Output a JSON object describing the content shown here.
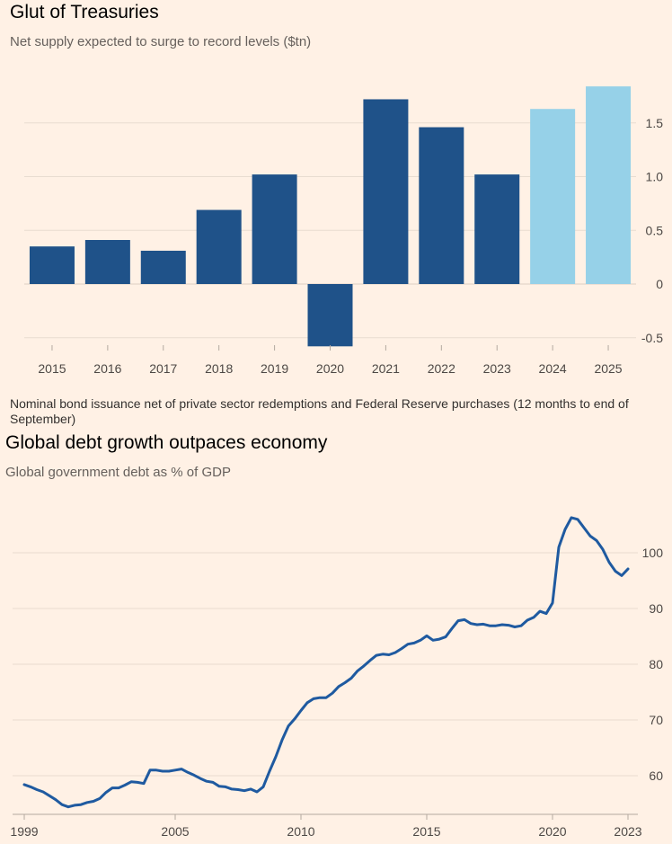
{
  "colors": {
    "background": "#fff1e5",
    "bar_actual": "#1f5289",
    "bar_forecast": "#96d1e8",
    "line": "#1f5aa0",
    "grid": "#e8dcd0"
  },
  "chart_data": [
    {
      "type": "bar",
      "title": "Glut of Treasuries",
      "subtitle": "Net supply expected to surge to record levels ($tn)",
      "note": "Nominal bond issuance net of private sector redemptions and Federal Reserve purchases (12 months to end of September)",
      "categories": [
        "2015",
        "2016",
        "2017",
        "2018",
        "2019",
        "2020",
        "2021",
        "2022",
        "2023",
        "2024",
        "2025"
      ],
      "values": [
        0.35,
        0.41,
        0.31,
        0.69,
        1.02,
        -0.58,
        1.72,
        1.46,
        1.02,
        1.63,
        1.84
      ],
      "forecast": [
        false,
        false,
        false,
        false,
        false,
        false,
        false,
        false,
        false,
        true,
        true
      ],
      "ylim": [
        -0.58,
        1.85
      ],
      "yticks": [
        -0.5,
        0,
        0.5,
        1.0,
        1.5
      ],
      "ytick_labels": [
        "-0.5",
        "0",
        "0.5",
        "1.0",
        "1.5"
      ],
      "y_axis_side": "right",
      "grid": true
    },
    {
      "type": "line",
      "title": "Global debt growth outpaces economy",
      "subtitle": "Global government debt as % of GDP",
      "xlim": [
        1999,
        2023.1
      ],
      "ylim": [
        54,
        108
      ],
      "xticks": [
        1999,
        2005,
        2010,
        2015,
        2020,
        2023
      ],
      "xtick_labels": [
        "1999",
        "2005",
        "2010",
        "2015",
        "2020",
        "2023"
      ],
      "yticks": [
        60,
        70,
        80,
        90,
        100
      ],
      "ytick_labels": [
        "60",
        "70",
        "80",
        "90",
        "100"
      ],
      "y_axis_side": "right",
      "grid": true,
      "series": [
        {
          "x": [
            1999.0,
            1999.25,
            1999.5,
            1999.75,
            2000.0,
            2000.25,
            2000.5,
            2000.75,
            2001.0,
            2001.25,
            2001.5,
            2001.75,
            2002.0,
            2002.25,
            2002.5,
            2002.75,
            2003.0,
            2003.25,
            2003.5,
            2003.75,
            2004.0,
            2004.25,
            2004.5,
            2004.75,
            2005.0,
            2005.25,
            2005.5,
            2005.75,
            2006.0,
            2006.25,
            2006.5,
            2006.75,
            2007.0,
            2007.25,
            2007.5,
            2007.75,
            2008.0,
            2008.25,
            2008.5,
            2008.75,
            2009.0,
            2009.25,
            2009.5,
            2009.75,
            2010.0,
            2010.25,
            2010.5,
            2010.75,
            2011.0,
            2011.25,
            2011.5,
            2011.75,
            2012.0,
            2012.25,
            2012.5,
            2012.75,
            2013.0,
            2013.25,
            2013.5,
            2013.75,
            2014.0,
            2014.25,
            2014.5,
            2014.75,
            2015.0,
            2015.25,
            2015.5,
            2015.75,
            2016.0,
            2016.25,
            2016.5,
            2016.75,
            2017.0,
            2017.25,
            2017.5,
            2017.75,
            2018.0,
            2018.25,
            2018.5,
            2018.75,
            2019.0,
            2019.25,
            2019.5,
            2019.75,
            2020.0,
            2020.25,
            2020.5,
            2020.75,
            2021.0,
            2021.25,
            2021.5,
            2021.75,
            2022.0,
            2022.25,
            2022.5,
            2022.75,
            2023.0
          ],
          "values": [
            58.4,
            58.0,
            57.5,
            57.1,
            56.4,
            55.7,
            54.8,
            54.4,
            54.7,
            54.8,
            55.2,
            55.4,
            55.9,
            57.0,
            57.8,
            57.8,
            58.3,
            58.9,
            58.8,
            58.6,
            61.0,
            61.0,
            60.8,
            60.8,
            61.0,
            61.2,
            60.6,
            60.1,
            59.5,
            59.0,
            58.8,
            58.1,
            58.0,
            57.6,
            57.5,
            57.3,
            57.6,
            57.1,
            58.0,
            60.8,
            63.4,
            66.4,
            68.9,
            70.2,
            71.7,
            73.1,
            73.8,
            74.0,
            74.0,
            74.8,
            76.0,
            76.7,
            77.5,
            78.8,
            79.7,
            80.7,
            81.6,
            81.8,
            81.7,
            82.1,
            82.8,
            83.6,
            83.8,
            84.3,
            85.1,
            84.3,
            84.5,
            84.9,
            86.4,
            87.8,
            88.0,
            87.3,
            87.1,
            87.2,
            86.9,
            86.9,
            87.1,
            87.0,
            86.7,
            86.9,
            87.9,
            88.4,
            89.5,
            89.1,
            91.0,
            101.0,
            104.2,
            106.3,
            106.0,
            104.5,
            103.0,
            102.2,
            100.6,
            98.3,
            96.7,
            95.9,
            97.1
          ]
        }
      ]
    }
  ]
}
